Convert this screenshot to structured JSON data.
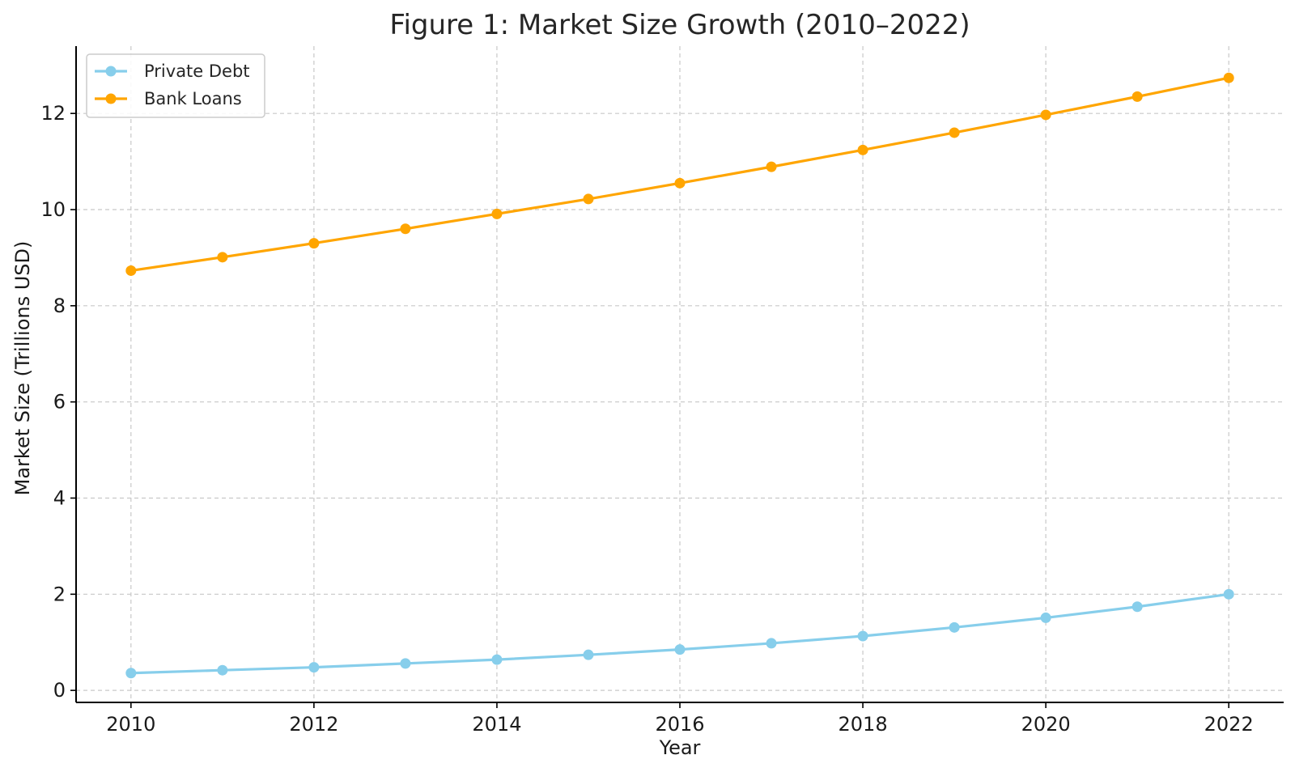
{
  "chart_data": {
    "type": "line",
    "title": "Figure 1: Market Size Growth (2010–2022)",
    "xlabel": "Year",
    "ylabel": "Market Size (Trillions USD)",
    "x": [
      2010,
      2011,
      2012,
      2013,
      2014,
      2015,
      2016,
      2017,
      2018,
      2019,
      2020,
      2021,
      2022
    ],
    "xlim": [
      2009.4,
      2022.6
    ],
    "ylim": [
      -0.25,
      13.4
    ],
    "x_ticks": [
      2010,
      2012,
      2014,
      2016,
      2018,
      2020,
      2022
    ],
    "y_ticks": [
      0,
      2,
      4,
      6,
      8,
      10,
      12
    ],
    "grid": true,
    "legend_position": "upper-left",
    "series": [
      {
        "name": "Private Debt",
        "color": "#87CEEB",
        "values": [
          0.36,
          0.42,
          0.48,
          0.56,
          0.64,
          0.74,
          0.85,
          0.98,
          1.13,
          1.31,
          1.51,
          1.74,
          2.0
        ]
      },
      {
        "name": "Bank Loans",
        "color": "#FFA500",
        "values": [
          8.73,
          9.01,
          9.3,
          9.6,
          9.91,
          10.22,
          10.55,
          10.89,
          11.24,
          11.6,
          11.97,
          12.35,
          12.74
        ]
      }
    ]
  }
}
